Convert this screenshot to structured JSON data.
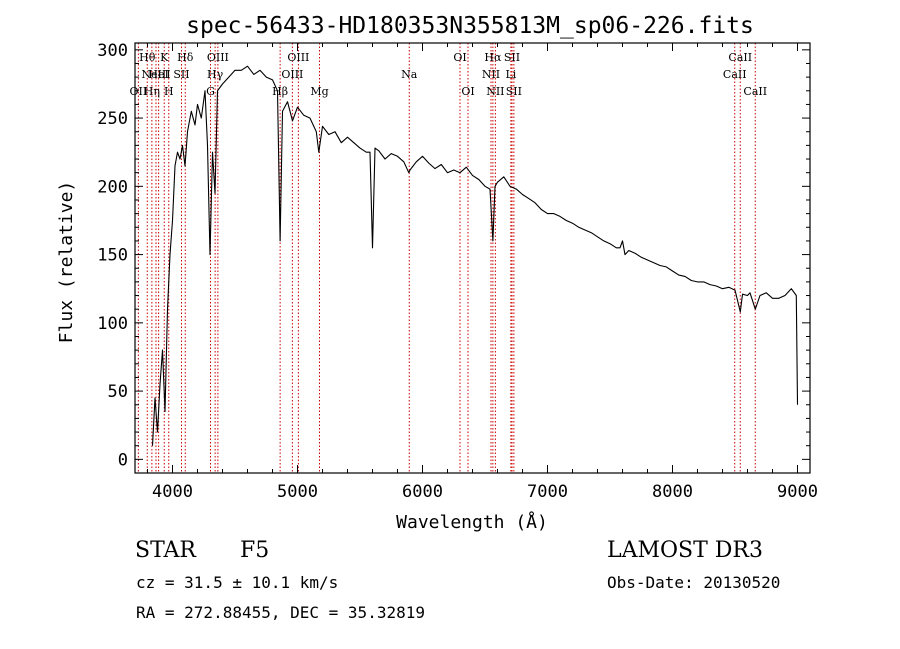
{
  "chart_data": {
    "type": "line",
    "title": "spec-56433-HD180353N355813M_sp06-226.fits",
    "xlabel": "Wavelength (Å)",
    "ylabel": "Flux (relative)",
    "xlim": [
      3700,
      9100
    ],
    "ylim": [
      -10,
      305
    ],
    "xticks": [
      4000,
      5000,
      6000,
      7000,
      8000,
      9000
    ],
    "yticks": [
      0,
      50,
      100,
      150,
      200,
      250,
      300
    ],
    "series": [
      {
        "name": "spectrum",
        "x": [
          3840,
          3860,
          3880,
          3900,
          3920,
          3940,
          3960,
          3980,
          4000,
          4020,
          4040,
          4060,
          4080,
          4100,
          4120,
          4150,
          4180,
          4200,
          4230,
          4260,
          4280,
          4300,
          4320,
          4340,
          4360,
          4400,
          4450,
          4500,
          4550,
          4600,
          4650,
          4700,
          4750,
          4800,
          4840,
          4861,
          4880,
          4920,
          4960,
          5000,
          5050,
          5100,
          5150,
          5170,
          5200,
          5250,
          5300,
          5350,
          5400,
          5450,
          5500,
          5550,
          5580,
          5600,
          5620,
          5650,
          5700,
          5750,
          5800,
          5850,
          5890,
          5900,
          5950,
          6000,
          6050,
          6100,
          6150,
          6200,
          6250,
          6300,
          6350,
          6400,
          6450,
          6500,
          6540,
          6563,
          6580,
          6600,
          6650,
          6700,
          6750,
          6800,
          6850,
          6900,
          6950,
          7000,
          7050,
          7100,
          7150,
          7200,
          7250,
          7300,
          7350,
          7400,
          7450,
          7500,
          7550,
          7580,
          7600,
          7620,
          7650,
          7700,
          7750,
          7800,
          7850,
          7900,
          7950,
          8000,
          8050,
          8100,
          8150,
          8200,
          8250,
          8300,
          8350,
          8400,
          8450,
          8500,
          8542,
          8560,
          8600,
          8620,
          8662,
          8700,
          8750,
          8800,
          8850,
          8900,
          8950,
          8990,
          9000
        ],
        "y": [
          10,
          45,
          20,
          55,
          80,
          35,
          110,
          150,
          175,
          215,
          225,
          220,
          230,
          215,
          240,
          255,
          245,
          260,
          250,
          270,
          230,
          150,
          225,
          195,
          270,
          275,
          280,
          285,
          285,
          288,
          282,
          285,
          280,
          278,
          270,
          160,
          255,
          262,
          248,
          258,
          252,
          250,
          240,
          225,
          244,
          238,
          240,
          232,
          236,
          232,
          228,
          225,
          225,
          155,
          228,
          226,
          220,
          224,
          222,
          218,
          210,
          212,
          218,
          222,
          217,
          213,
          216,
          210,
          212,
          210,
          214,
          208,
          205,
          200,
          198,
          160,
          200,
          203,
          207,
          200,
          198,
          194,
          191,
          188,
          183,
          180,
          180,
          178,
          175,
          173,
          170,
          168,
          166,
          163,
          160,
          158,
          155,
          155,
          160,
          150,
          153,
          151,
          148,
          146,
          144,
          142,
          141,
          138,
          135,
          134,
          131,
          130,
          130,
          128,
          127,
          125,
          126,
          124,
          108,
          121,
          120,
          122,
          110,
          120,
          122,
          118,
          118,
          120,
          125,
          120,
          40
        ]
      }
    ],
    "line_markers": [
      {
        "wavelength": 3727,
        "label": "OII",
        "row": 2
      },
      {
        "wavelength": 3798,
        "label": "Hθ",
        "row": 0
      },
      {
        "wavelength": 3835,
        "label": "Hη",
        "row": 2
      },
      {
        "wavelength": 3868,
        "label": "NeIII",
        "row": 1
      },
      {
        "wavelength": 3889,
        "label": "HeI",
        "row": 1
      },
      {
        "wavelength": 3934,
        "label": "K",
        "row": 0
      },
      {
        "wavelength": 3970,
        "label": "H",
        "row": 2
      },
      {
        "wavelength": 4072,
        "label": "SII",
        "row": 1
      },
      {
        "wavelength": 4102,
        "label": "Hδ",
        "row": 0
      },
      {
        "wavelength": 4304,
        "label": "G",
        "row": 2
      },
      {
        "wavelength": 4341,
        "label": "Hγ",
        "row": 1
      },
      {
        "wavelength": 4363,
        "label": "OIII",
        "row": 0
      },
      {
        "wavelength": 4861,
        "label": "Hβ",
        "row": 2
      },
      {
        "wavelength": 4959,
        "label": "OIII",
        "row": 1
      },
      {
        "wavelength": 5007,
        "label": "OIII",
        "row": 0
      },
      {
        "wavelength": 5176,
        "label": "Mg",
        "row": 2
      },
      {
        "wavelength": 5894,
        "label": "Na",
        "row": 1
      },
      {
        "wavelength": 6300,
        "label": "OI",
        "row": 0
      },
      {
        "wavelength": 6364,
        "label": "OI",
        "row": 2
      },
      {
        "wavelength": 6548,
        "label": "NII",
        "row": 1
      },
      {
        "wavelength": 6563,
        "label": "Hα",
        "row": 0
      },
      {
        "wavelength": 6583,
        "label": "NII",
        "row": 2
      },
      {
        "wavelength": 6707,
        "label": "Li",
        "row": 1
      },
      {
        "wavelength": 6716,
        "label": "SII",
        "row": 0
      },
      {
        "wavelength": 6731,
        "label": "SII",
        "row": 2
      },
      {
        "wavelength": 8498,
        "label": "CaII",
        "row": 1
      },
      {
        "wavelength": 8542,
        "label": "CaII",
        "row": 0
      },
      {
        "wavelength": 8662,
        "label": "CaII",
        "row": 2
      }
    ]
  },
  "info": {
    "class": "STAR",
    "subclass": "F5",
    "survey": "LAMOST DR3",
    "redshift": "cz = 31.5 ± 10.1 km/s",
    "obs_date": "Obs-Date: 20130520",
    "coords": "RA = 272.88455, DEC =  35.32819"
  },
  "colors": {
    "axes": "#000000",
    "spectrum": "#000000",
    "marker": "#cc0000",
    "background": "#ffffff"
  }
}
